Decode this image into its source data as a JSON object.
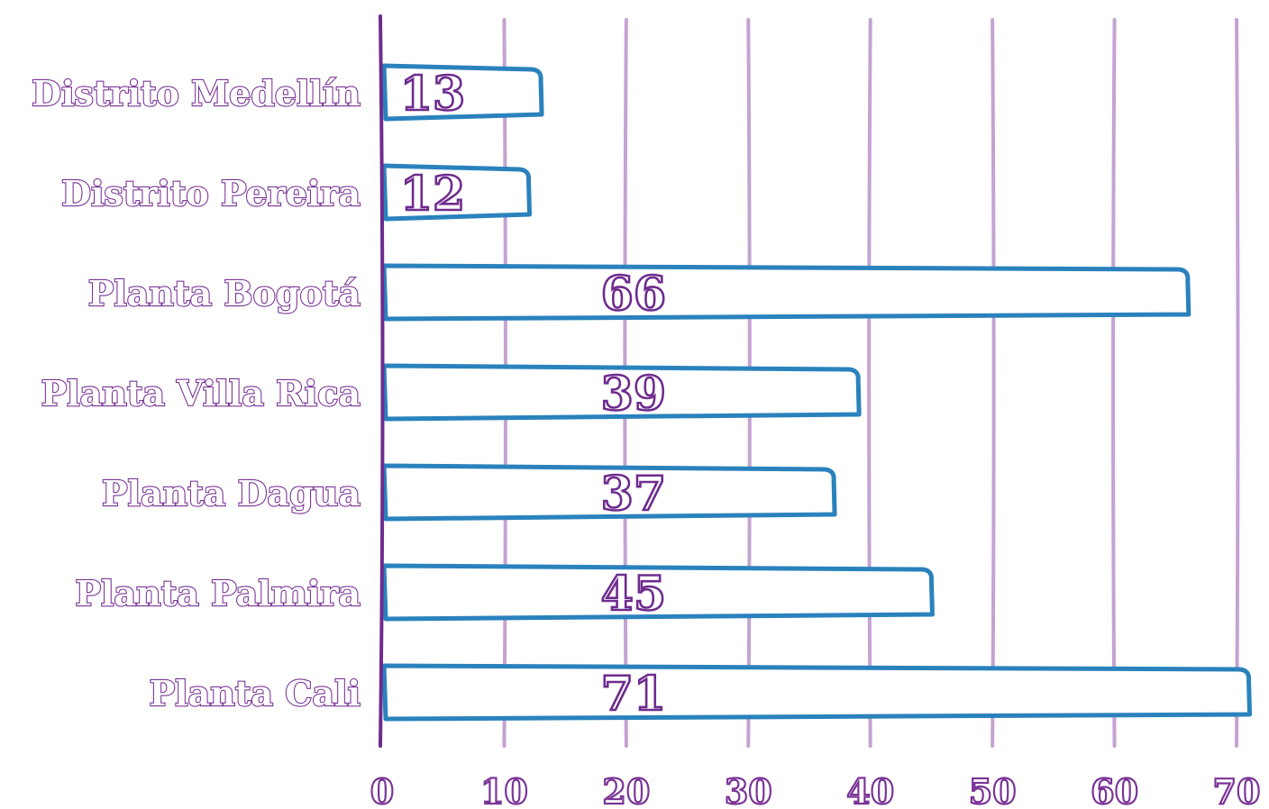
{
  "chart_data": {
    "type": "bar",
    "orientation": "horizontal",
    "categories": [
      "Distrito Medellín",
      "Distrito Pereira",
      "Planta Bogotá",
      "Planta Villa Rica",
      "Planta Dagua",
      "Planta Palmira",
      "Planta Cali"
    ],
    "values": [
      13,
      12,
      66,
      39,
      37,
      45,
      71
    ],
    "xlim": [
      0,
      70
    ],
    "xticks": [
      0,
      10,
      20,
      30,
      40,
      50,
      60,
      70
    ],
    "grid": true,
    "data_labels": true,
    "title": "",
    "xlabel": "",
    "ylabel": "",
    "colors": {
      "bar_outline": "#2a82bd",
      "text": "#7a3596",
      "grid": "#c4a3d1",
      "axis": "#6e2c8e"
    }
  }
}
